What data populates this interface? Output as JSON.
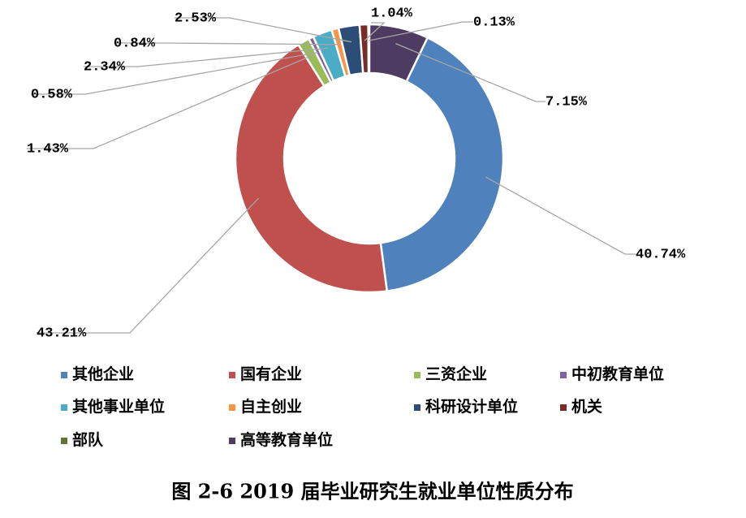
{
  "chart_data": {
    "type": "donut",
    "title": "图 2-6 2019 届毕业研究生就业单位性质分布",
    "categories": [
      "其他企业",
      "国有企业",
      "三资企业",
      "中初教育单位",
      "其他事业单位",
      "自主创业",
      "科研设计单位",
      "机关",
      "部队",
      "高等教育单位"
    ],
    "values": [
      40.74,
      43.21,
      1.43,
      0.58,
      2.34,
      0.84,
      2.53,
      1.04,
      0.13,
      7.15
    ],
    "value_labels": [
      "40.74%",
      "43.21%",
      "1.43%",
      "0.58%",
      "2.34%",
      "0.84%",
      "2.53%",
      "1.04%",
      "0.13%",
      "7.15%"
    ],
    "colors": [
      "#4f81bd",
      "#c0504d",
      "#9bbb59",
      "#8064a2",
      "#4bacc6",
      "#f79646",
      "#2c4d75",
      "#772c2a",
      "#5f7530",
      "#4d3b62"
    ]
  }
}
